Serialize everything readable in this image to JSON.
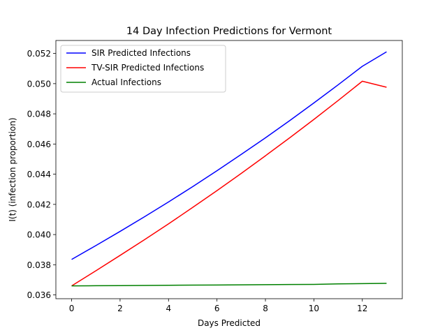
{
  "chart_data": {
    "type": "line",
    "title": "14 Day Infection Predictions for Vermont",
    "xlabel": "Days Predicted",
    "ylabel": "I(t) (infection proportion)",
    "xlim": [
      -0.65,
      13.65
    ],
    "ylim": [
      0.03575,
      0.05286
    ],
    "xticks": [
      0,
      2,
      4,
      6,
      8,
      10,
      12
    ],
    "yticks": [
      0.036,
      0.038,
      0.04,
      0.042,
      0.044,
      0.046,
      0.048,
      0.05,
      0.052
    ],
    "ytick_labels": [
      "0.036",
      "0.038",
      "0.040",
      "0.042",
      "0.044",
      "0.046",
      "0.048",
      "0.050",
      "0.052"
    ],
    "grid": false,
    "legend": "top-left",
    "x": [
      0,
      1,
      2,
      3,
      4,
      5,
      6,
      7,
      8,
      9,
      10,
      11,
      12,
      13
    ],
    "series": [
      {
        "name": "SIR Predicted Infections",
        "color": "#0000ff",
        "values": [
          0.03835,
          0.03927,
          0.04021,
          0.04117,
          0.04216,
          0.04318,
          0.04423,
          0.04531,
          0.04641,
          0.04755,
          0.04872,
          0.04992,
          0.05115,
          0.05211
        ]
      },
      {
        "name": "TV-SIR Predicted Infections",
        "color": "#ff0000",
        "values": [
          0.0366,
          0.0376,
          0.03862,
          0.03965,
          0.04071,
          0.0418,
          0.04291,
          0.04405,
          0.04522,
          0.04641,
          0.04763,
          0.04888,
          0.05016,
          0.04976
        ]
      },
      {
        "name": "Actual Infections",
        "color": "#008000",
        "values": [
          0.0366,
          0.03661,
          0.03662,
          0.03663,
          0.03664,
          0.03665,
          0.03666,
          0.03667,
          0.03668,
          0.03669,
          0.0367,
          0.03673,
          0.03675,
          0.03677
        ]
      }
    ]
  }
}
